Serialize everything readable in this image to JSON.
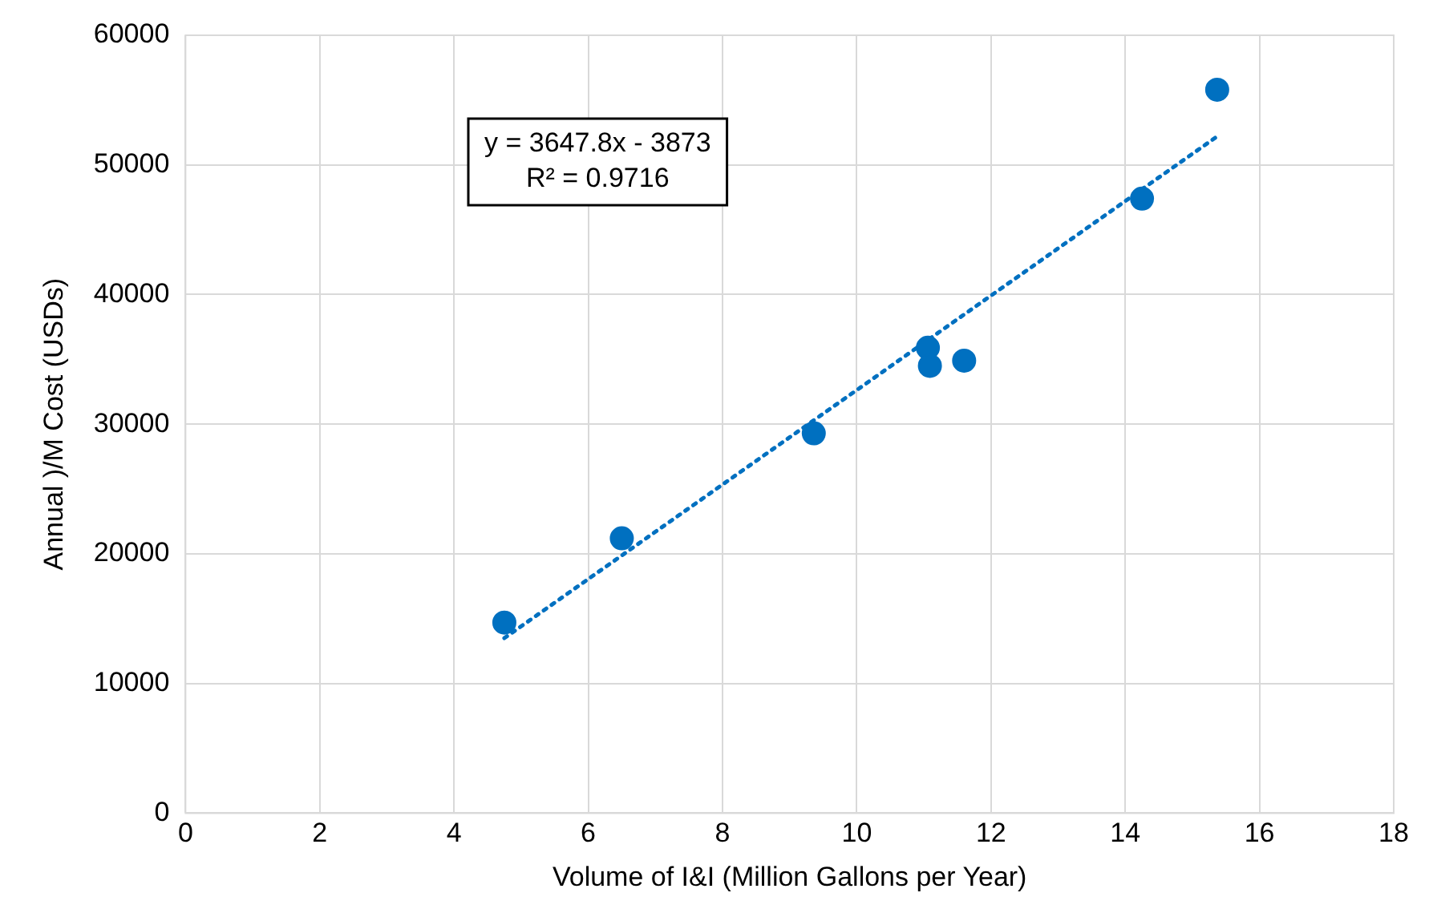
{
  "chart_data": {
    "type": "scatter",
    "xlabel": "Volume of I&I (Million Gallons per Year)",
    "ylabel": "Annual )/M Cost (USDs)",
    "xlim": [
      0,
      18
    ],
    "xticks": [
      0,
      2,
      4,
      6,
      8,
      10,
      12,
      14,
      16,
      18
    ],
    "ylim": [
      0,
      60000
    ],
    "yticks": [
      0,
      10000,
      20000,
      30000,
      40000,
      50000,
      60000
    ],
    "grid": true,
    "legend": false,
    "marker": "circle",
    "series": [
      {
        "color": "#0070c0",
        "x": [
          4.75,
          6.5,
          9.36,
          11.06,
          11.09,
          11.6,
          14.25,
          15.37
        ],
        "values": [
          14700,
          21200,
          29300,
          35900,
          34500,
          34900,
          47400,
          55800
        ]
      },
      {
        "type": "line",
        "color": "#0070c0",
        "line_style": "dotted",
        "marker": "none",
        "x": [
          4.75,
          15.37
        ],
        "values": [
          13500,
          52200
        ]
      }
    ],
    "annotations": [
      "y = 3647.8x - 3873\nR² = 0.9716"
    ]
  }
}
